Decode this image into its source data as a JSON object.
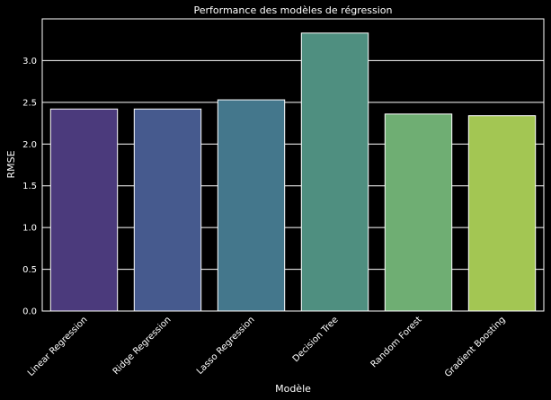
{
  "chart_data": {
    "type": "bar",
    "title": "Performance des modèles de régression",
    "xlabel": "Modèle",
    "ylabel": "RMSE",
    "categories": [
      "Linear Regression",
      "Ridge Regression",
      "Lasso Regression",
      "Decision Tree",
      "Random Forest",
      "Gradient Boosting"
    ],
    "values": [
      2.42,
      2.42,
      2.53,
      3.33,
      2.36,
      2.34
    ],
    "colors": [
      "#4b3a7c",
      "#465a8e",
      "#44778c",
      "#4f8f80",
      "#6fae73",
      "#a3c653"
    ],
    "yticks": [
      0.0,
      0.5,
      1.0,
      1.5,
      2.0,
      2.5,
      3.0
    ],
    "ylim": [
      0,
      3.5
    ],
    "grid": true,
    "background": "#000000",
    "foreground": "#ffffff"
  }
}
